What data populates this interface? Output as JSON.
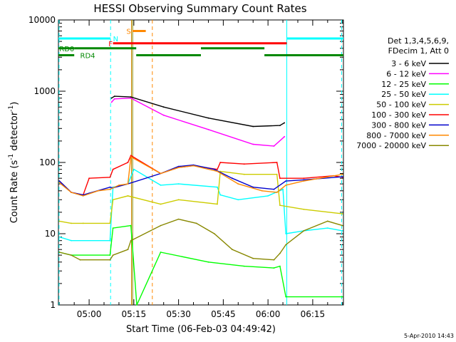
{
  "chart_data": {
    "type": "line",
    "title": "HESSI Observing Summary Count Rates",
    "xlabel": "Start Time (06-Feb-03 04:49:42)",
    "ylabel_main": "Count Rate (s",
    "ylabel_sup1": "-1",
    "ylabel_mid": " detector",
    "ylabel_sup2": "-1",
    "ylabel_end": ")",
    "yscale": "log",
    "ylim": [
      1,
      10000
    ],
    "xlim_minutes": [
      -10.3,
      85.3
    ],
    "x_ticks": [
      {
        "label": "05:00",
        "t": 0
      },
      {
        "label": "05:15",
        "t": 15
      },
      {
        "label": "05:30",
        "t": 30
      },
      {
        "label": "05:45",
        "t": 45
      },
      {
        "label": "06:00",
        "t": 60
      },
      {
        "label": "06:15",
        "t": 75
      }
    ],
    "y_ticks": [
      {
        "label": "1",
        "v": 1
      },
      {
        "label": "10",
        "v": 10
      },
      {
        "label": "100",
        "v": 100
      },
      {
        "label": "1000",
        "v": 1000
      },
      {
        "label": "10000",
        "v": 10000
      }
    ],
    "legend_header": [
      "Det 1,3,4,5,6,9,",
      "FDecim 1, Att 0"
    ],
    "legend_position": "right",
    "footer_date": "5-Apr-2010 14:43",
    "series": [
      {
        "name": "3 - 6 keV",
        "color": "#000000",
        "points": [
          [
            7.5,
            800
          ],
          [
            8.5,
            850
          ],
          [
            14,
            830
          ],
          [
            25,
            600
          ],
          [
            40,
            420
          ],
          [
            55,
            320
          ],
          [
            64,
            330
          ],
          [
            65.5,
            360
          ]
        ]
      },
      {
        "name": "6 - 12 keV",
        "color": "#ff00ff",
        "points": [
          [
            7.5,
            700
          ],
          [
            8.5,
            780
          ],
          [
            14,
            800
          ],
          [
            25,
            460
          ],
          [
            40,
            290
          ],
          [
            55,
            180
          ],
          [
            62,
            170
          ],
          [
            65.5,
            230
          ]
        ]
      },
      {
        "name": "12 - 25 keV",
        "color": "#00ff00",
        "points": [
          [
            -10,
            5.5
          ],
          [
            -6,
            5
          ],
          [
            7,
            5
          ],
          [
            8,
            12
          ],
          [
            14,
            13
          ],
          [
            16,
            1
          ],
          [
            24,
            5.5
          ],
          [
            40,
            4
          ],
          [
            52,
            3.5
          ],
          [
            62,
            3.3
          ],
          [
            64,
            3.5
          ],
          [
            66,
            1.3
          ],
          [
            85,
            1.3
          ]
        ]
      },
      {
        "name": "25 - 50 keV",
        "color": "#00ffff",
        "points": [
          [
            -10,
            9
          ],
          [
            -6,
            8
          ],
          [
            7,
            8
          ],
          [
            8,
            45
          ],
          [
            13,
            50
          ],
          [
            15,
            80
          ],
          [
            24,
            48
          ],
          [
            30,
            50
          ],
          [
            43,
            45
          ],
          [
            44,
            35
          ],
          [
            50,
            30
          ],
          [
            60,
            34
          ],
          [
            65,
            42
          ],
          [
            66,
            10
          ],
          [
            72,
            11
          ],
          [
            80,
            12
          ],
          [
            85,
            11
          ]
        ]
      },
      {
        "name": "50 - 100 keV",
        "color": "#cccc00",
        "points": [
          [
            -10,
            15
          ],
          [
            -6,
            14
          ],
          [
            -2,
            14
          ],
          [
            7,
            14
          ],
          [
            8,
            30
          ],
          [
            13,
            34
          ],
          [
            24,
            26
          ],
          [
            30,
            30
          ],
          [
            43,
            26
          ],
          [
            44,
            75
          ],
          [
            52,
            68
          ],
          [
            63,
            68
          ],
          [
            64,
            25
          ],
          [
            72,
            22
          ],
          [
            85,
            19
          ]
        ]
      },
      {
        "name": "100 - 300 keV",
        "color": "#ff0000",
        "points": [
          [
            -10,
            55
          ],
          [
            -6,
            38
          ],
          [
            -2,
            35
          ],
          [
            0,
            60
          ],
          [
            7,
            62
          ],
          [
            8,
            80
          ],
          [
            13,
            100
          ],
          [
            14,
            125
          ],
          [
            24,
            70
          ],
          [
            30,
            85
          ],
          [
            35,
            90
          ],
          [
            43,
            80
          ],
          [
            44,
            100
          ],
          [
            52,
            95
          ],
          [
            63,
            100
          ],
          [
            64,
            60
          ],
          [
            72,
            60
          ],
          [
            82,
            65
          ],
          [
            85,
            62
          ]
        ]
      },
      {
        "name": "300 - 800 keV",
        "color": "#0000cc",
        "points": [
          [
            -10,
            55
          ],
          [
            -6,
            38
          ],
          [
            -2,
            35
          ],
          [
            0,
            37
          ],
          [
            7,
            45
          ],
          [
            8,
            44
          ],
          [
            13,
            50
          ],
          [
            24,
            70
          ],
          [
            30,
            88
          ],
          [
            35,
            92
          ],
          [
            42,
            80
          ],
          [
            48,
            60
          ],
          [
            55,
            45
          ],
          [
            62,
            42
          ],
          [
            66,
            55
          ],
          [
            72,
            57
          ],
          [
            85,
            63
          ]
        ]
      },
      {
        "name": "800 - 7000 keV",
        "color": "#ff8800",
        "points": [
          [
            -10,
            52
          ],
          [
            -6,
            38
          ],
          [
            -2,
            34
          ],
          [
            3,
            40
          ],
          [
            7,
            42
          ],
          [
            10,
            48
          ],
          [
            13,
            50
          ],
          [
            14,
            120
          ],
          [
            24,
            70
          ],
          [
            30,
            85
          ],
          [
            35,
            90
          ],
          [
            43,
            75
          ],
          [
            50,
            50
          ],
          [
            58,
            40
          ],
          [
            63,
            38
          ],
          [
            66,
            48
          ],
          [
            72,
            55
          ],
          [
            85,
            68
          ]
        ]
      },
      {
        "name": "7000 - 20000 keV",
        "color": "#888800",
        "points": [
          [
            -10,
            5.5
          ],
          [
            -6,
            5
          ],
          [
            -3,
            4.3
          ],
          [
            7,
            4.3
          ],
          [
            8,
            5
          ],
          [
            13,
            6
          ],
          [
            14,
            8
          ],
          [
            24,
            13
          ],
          [
            30,
            16
          ],
          [
            36,
            14
          ],
          [
            42,
            10
          ],
          [
            48,
            6
          ],
          [
            55,
            4.5
          ],
          [
            62,
            4.3
          ],
          [
            64,
            5.3
          ],
          [
            66,
            7
          ],
          [
            72,
            11
          ],
          [
            80,
            15
          ],
          [
            85,
            13
          ]
        ]
      }
    ],
    "bars": [
      {
        "label": "N",
        "color": "#00ffff",
        "t_start": -10.3,
        "t_end": 7.2,
        "level": 5500,
        "label_t": 8
      },
      {
        "label": "N",
        "color": "#00ffff",
        "t_start": 66.3,
        "t_end": 85.3,
        "level": 5500,
        "label_t": null
      },
      {
        "label": "S",
        "color": "#ff8800",
        "t_start": 14.5,
        "t_end": 19,
        "level": 7000,
        "label_t": 12.5
      },
      {
        "label": "F",
        "color": "#ff0000",
        "t_start": 8,
        "t_end": 66.3,
        "level": 4700,
        "label_t": 6.5
      },
      {
        "label": "RD0",
        "color": "#008800",
        "t_start": -10.3,
        "t_end": -5,
        "level": 4000,
        "label_t": -10
      },
      {
        "label": "",
        "color": "#008800",
        "t_start": -5,
        "t_end": 15.8,
        "level": 4000,
        "label_t": null
      },
      {
        "label": "RD4",
        "color": "#008800",
        "t_start": -10.3,
        "t_end": -5,
        "level": 3200,
        "label_t": -3
      },
      {
        "label": "",
        "color": "#008800",
        "t_start": 15.8,
        "t_end": 37.5,
        "level": 3200,
        "label_t": null
      },
      {
        "label": "",
        "color": "#008800",
        "t_start": 37.5,
        "t_end": 58.8,
        "level": 4000,
        "label_t": null
      },
      {
        "label": "",
        "color": "#008800",
        "t_start": 58.8,
        "t_end": 85.3,
        "level": 3200,
        "label_t": null
      }
    ],
    "vlines": [
      {
        "t": -10.1,
        "color": "#00ffff",
        "dashed": true
      },
      {
        "t": 7.2,
        "color": "#00ffff",
        "dashed": true
      },
      {
        "t": 14.2,
        "color": "#cc8800",
        "dashed": false
      },
      {
        "t": 14.6,
        "color": "#888800",
        "dashed": false
      },
      {
        "t": 21.2,
        "color": "#ff8800",
        "dashed": true
      },
      {
        "t": 66.3,
        "color": "#00ffff",
        "dashed": false
      },
      {
        "t": 84.7,
        "color": "#00ffff",
        "dashed": true
      }
    ]
  }
}
